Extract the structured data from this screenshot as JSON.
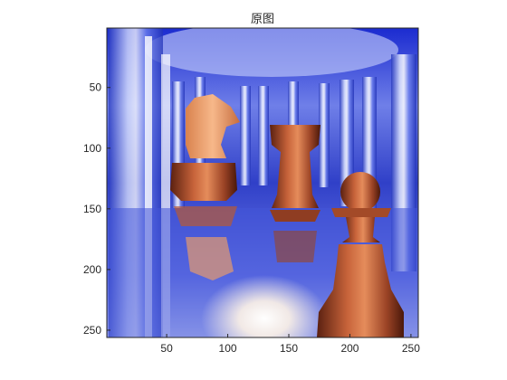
{
  "figure": {
    "title": "原图"
  },
  "axes": {
    "xlim": [
      1,
      256
    ],
    "ylim": [
      1,
      256
    ],
    "y_direction": "reversed",
    "x_ticks": [
      50,
      100,
      150,
      200,
      250
    ],
    "y_ticks": [
      50,
      100,
      150,
      200,
      250
    ],
    "x_tick_labels": [
      "50",
      "100",
      "150",
      "200",
      "250"
    ],
    "y_tick_labels": [
      "50",
      "100",
      "150",
      "200",
      "250"
    ]
  },
  "image": {
    "subject": "ray-traced chess pieces (knight, rook, pawn) among blue glass cylinders",
    "colors": {
      "background_blue": "#3a4fd8",
      "highlight": "#fff7e8",
      "piece_copper": "#b5532c",
      "piece_light": "#f2a070"
    }
  }
}
